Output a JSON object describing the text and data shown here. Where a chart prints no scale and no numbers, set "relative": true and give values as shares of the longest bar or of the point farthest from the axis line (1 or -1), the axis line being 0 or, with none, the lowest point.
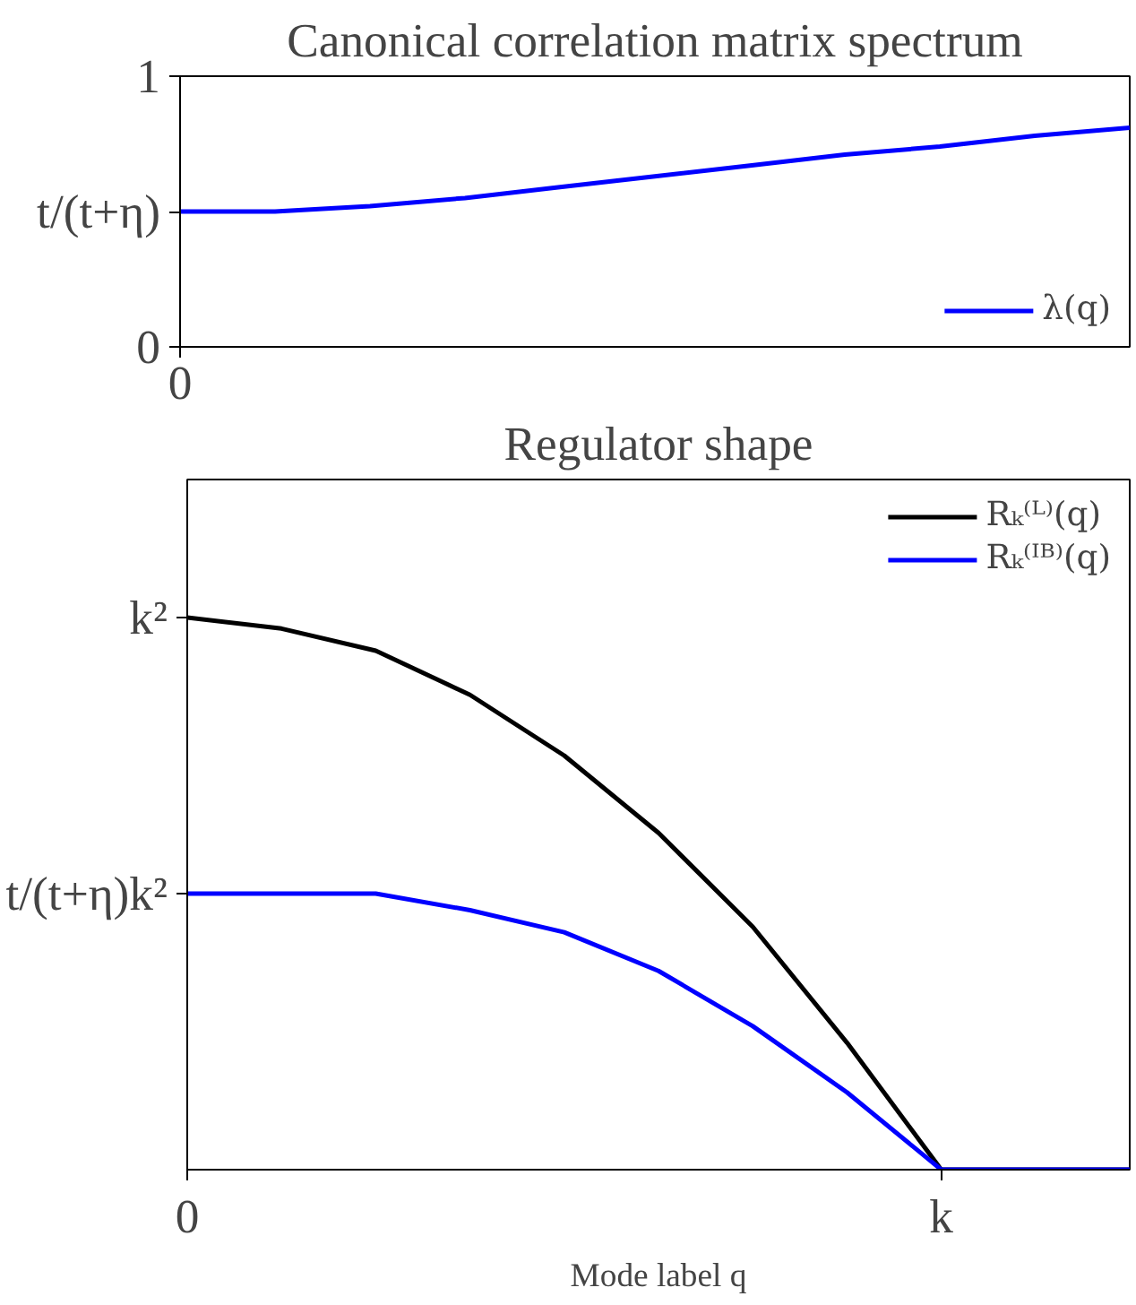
{
  "chart_data": [
    {
      "type": "line",
      "title": "Canonical correlation matrix spectrum",
      "categories": [
        "0",
        null,
        null,
        null,
        null,
        null,
        null,
        null,
        null,
        null,
        null
      ],
      "series": [
        {
          "name": "λ(q)",
          "color": "#0000ff",
          "values": [
            0.5,
            0.5,
            0.52,
            0.55,
            0.59,
            0.63,
            0.67,
            0.71,
            0.74,
            0.78,
            0.81
          ]
        }
      ],
      "ylim": [
        0,
        1
      ],
      "yticks": [
        0,
        {
          "value": 0.5,
          "label": "t/(t+η)"
        },
        1
      ],
      "legend": "bottom right",
      "grid": false,
      "marker": "none",
      "line_style": "solid"
    },
    {
      "type": "line",
      "title": "Regulator shape",
      "xlabel": "Mode label q",
      "relative": true,
      "categories": [
        "0",
        null,
        null,
        null,
        null,
        null,
        null,
        null,
        "k",
        null,
        null
      ],
      "series": [
        {
          "name": "Rₖ⁽ᴸ⁾(q)",
          "color": "#000000",
          "values": [
            1.0,
            0.98,
            0.94,
            0.86,
            0.75,
            0.61,
            0.44,
            0.23,
            0,
            0,
            0
          ]
        },
        {
          "name": "Rₖ⁽ᴵᴮ⁾(q)",
          "color": "#0000ff",
          "values": [
            0.5,
            0.5,
            0.5,
            0.47,
            0.43,
            0.36,
            0.26,
            0.14,
            0,
            0,
            0
          ]
        }
      ],
      "annotations": [
        {
          "text": "k²",
          "x": "0",
          "y": 1
        },
        {
          "text": "t/(t+η)k²",
          "x": "0",
          "y": 0.5
        }
      ],
      "legend": "top right",
      "grid": false,
      "marker": "none",
      "line_style": "solid"
    }
  ]
}
